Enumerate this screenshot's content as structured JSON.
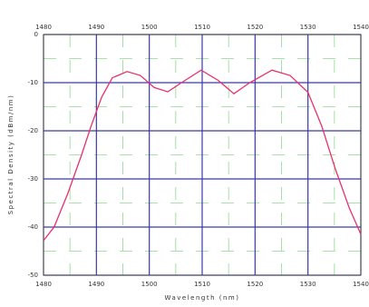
{
  "chart_data": {
    "type": "line",
    "x_label": "Wavelength (nm)",
    "y_label": "Spectral Density (dBm/nm)",
    "x": [
      1480,
      1482,
      1484.6,
      1487.2,
      1489,
      1491,
      1493,
      1495.8,
      1498.3,
      1500.9,
      1503.5,
      1506.1,
      1509.8,
      1513,
      1516,
      1519,
      1523.2,
      1526.6,
      1530,
      1532.6,
      1535.2,
      1537.8,
      1540
    ],
    "series": [
      {
        "color": "#e8306a",
        "values": [
          -42.8,
          -40,
          -33,
          -25,
          -19,
          -13,
          -9,
          -7.7,
          -8.5,
          -11,
          -11.9,
          -10,
          -7.4,
          -9.5,
          -12.3,
          -10,
          -7.4,
          -8.5,
          -12,
          -19,
          -28,
          -36,
          -41.5
        ]
      }
    ],
    "xlim": [
      1480,
      1540
    ],
    "xticks": [
      1480,
      1490,
      1500,
      1510,
      1520,
      1530,
      1540
    ],
    "ylim": [
      -50,
      0
    ],
    "yticks": [
      0,
      -10,
      -20,
      -30,
      -40,
      -50
    ],
    "top_axis": true,
    "grid": true,
    "grid_color": "#3a3aa8",
    "minor_grid": true,
    "minor_grid_color": "#8fd88f"
  }
}
